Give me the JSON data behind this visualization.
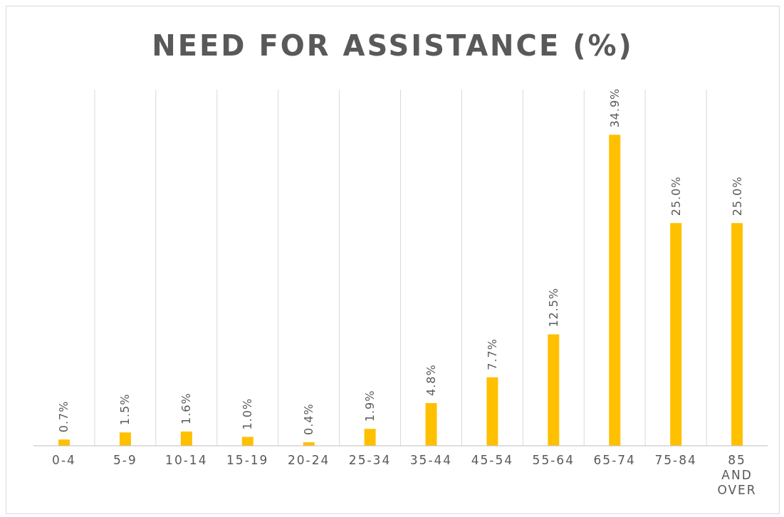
{
  "chart_data": {
    "type": "bar",
    "title": "NEED FOR ASSISTANCE (%)",
    "categories": [
      "0-4",
      "5-9",
      "10-14",
      "15-19",
      "20-24",
      "25-34",
      "35-44",
      "45-54",
      "55-64",
      "65-74",
      "75-84",
      "85 AND OVER"
    ],
    "values": [
      0.7,
      1.5,
      1.6,
      1.0,
      0.4,
      1.9,
      4.8,
      7.7,
      12.5,
      34.9,
      25.0,
      25.0
    ],
    "value_labels": [
      "0.7%",
      "1.5%",
      "1.6%",
      "1.0%",
      "0.4%",
      "1.9%",
      "4.8%",
      "7.7%",
      "12.5%",
      "34.9%",
      "25.0%",
      "25.0%"
    ],
    "color": "#ffc000",
    "grid": "x"
  }
}
